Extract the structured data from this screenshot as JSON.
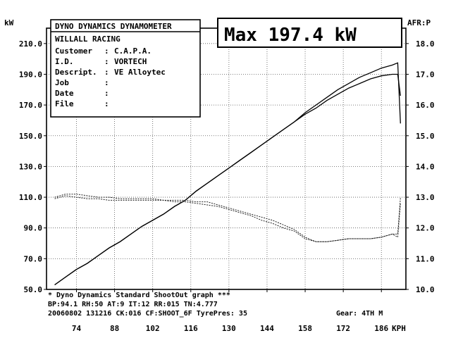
{
  "header": {
    "title": "DYNO DYNAMICS DYNAMOMETER",
    "shop": "WILLALL RACING",
    "fields": [
      {
        "label": "Customer",
        "sep": ":",
        "value": "C.A.P.A."
      },
      {
        "label": "I.D.",
        "sep": ":",
        "value": "VORTECH"
      },
      {
        "label": "Descript.",
        "sep": ":",
        "value": "VE Alloytec"
      },
      {
        "label": "Job",
        "sep": ":",
        "value": ""
      },
      {
        "label": "Date",
        "sep": ":",
        "value": ""
      },
      {
        "label": "File",
        "sep": ":",
        "value": ""
      }
    ],
    "max_label": "Max 197.4 kW"
  },
  "footer": {
    "line1": "* Dyno Dynamics Standard ShootOut graph ***",
    "line2": "BP:94.1  RH:50 AT:9  IT:12  RR:015 TN:4.777",
    "line3": "20060802 131216 CK:016 CF:SHOOT_6F TyrePres: 35",
    "gear": "Gear: 4TH M"
  },
  "chart_data": {
    "type": "line",
    "xlabel": "KPH",
    "ylabel": "kW",
    "y2label": "AFR:P",
    "xlim": [
      63,
      195
    ],
    "ylim": [
      50,
      220
    ],
    "y2lim": [
      10,
      18.5
    ],
    "xticks": [
      74,
      88,
      102,
      116,
      130,
      144,
      158,
      172,
      186
    ],
    "yticks": [
      "50.0",
      "70.0",
      "90.0",
      "110.0",
      "130.0",
      "150.0",
      "170.0",
      "190.0",
      "210.0"
    ],
    "y2ticks": [
      "10.0",
      "11.0",
      "12.0",
      "13.0",
      "14.0",
      "15.0",
      "16.0",
      "17.0",
      "18.0"
    ],
    "grid": true,
    "power_series": [
      {
        "x": [
          66,
          70,
          74,
          78,
          82,
          86,
          90,
          94,
          98,
          102,
          106,
          110,
          114,
          118,
          122,
          126,
          130,
          134,
          138,
          142,
          146,
          150,
          154,
          158,
          162,
          166,
          170,
          174,
          178,
          182,
          186,
          190,
          192,
          193
        ],
        "y": [
          53,
          58,
          63,
          67,
          72,
          77,
          81,
          86,
          91,
          95,
          99,
          104,
          108,
          114,
          119,
          124,
          129,
          134,
          139,
          144,
          149,
          154,
          159,
          164,
          168,
          173,
          177,
          181,
          184,
          187,
          189,
          190,
          190,
          176
        ]
      },
      {
        "x": [
          66,
          70,
          74,
          78,
          82,
          86,
          90,
          94,
          98,
          102,
          106,
          110,
          114,
          118,
          122,
          126,
          130,
          134,
          138,
          142,
          146,
          150,
          154,
          158,
          162,
          166,
          170,
          174,
          178,
          182,
          186,
          190,
          192,
          193
        ],
        "y": [
          53,
          58,
          63,
          67,
          72,
          77,
          81,
          86,
          91,
          95,
          99,
          104,
          108,
          114,
          119,
          124,
          129,
          134,
          139,
          144,
          149,
          154,
          159,
          165,
          170,
          175,
          180,
          184,
          188,
          191,
          194,
          196,
          197.4,
          158
        ]
      }
    ],
    "afr_series": [
      {
        "x": [
          66,
          70,
          74,
          78,
          82,
          86,
          90,
          94,
          98,
          102,
          106,
          110,
          114,
          118,
          122,
          126,
          130,
          134,
          138,
          142,
          146,
          150,
          154,
          158,
          162,
          166,
          170,
          174,
          178,
          182,
          186,
          190,
          192,
          193
        ],
        "y": [
          12.95,
          13.05,
          13.0,
          12.95,
          12.95,
          12.9,
          12.9,
          12.9,
          12.9,
          12.9,
          12.9,
          12.85,
          12.85,
          12.8,
          12.75,
          12.7,
          12.6,
          12.5,
          12.4,
          12.25,
          12.15,
          12.0,
          11.9,
          11.65,
          11.55,
          11.55,
          11.6,
          11.65,
          11.65,
          11.65,
          11.7,
          11.8,
          11.7,
          12.8
        ]
      },
      {
        "x": [
          66,
          70,
          74,
          78,
          82,
          86,
          90,
          94,
          98,
          102,
          106,
          110,
          114,
          118,
          122,
          126,
          130,
          134,
          138,
          142,
          146,
          150,
          154,
          158,
          162,
          166,
          170,
          174,
          178,
          182,
          186,
          190,
          192,
          193
        ],
        "y": [
          13.0,
          13.1,
          13.1,
          13.05,
          13.0,
          13.0,
          12.95,
          12.95,
          12.95,
          12.95,
          12.9,
          12.9,
          12.9,
          12.85,
          12.85,
          12.75,
          12.65,
          12.55,
          12.45,
          12.35,
          12.25,
          12.1,
          11.95,
          11.7,
          11.55,
          11.55,
          11.6,
          11.65,
          11.65,
          11.65,
          11.7,
          11.8,
          11.8,
          13.0
        ]
      }
    ]
  }
}
